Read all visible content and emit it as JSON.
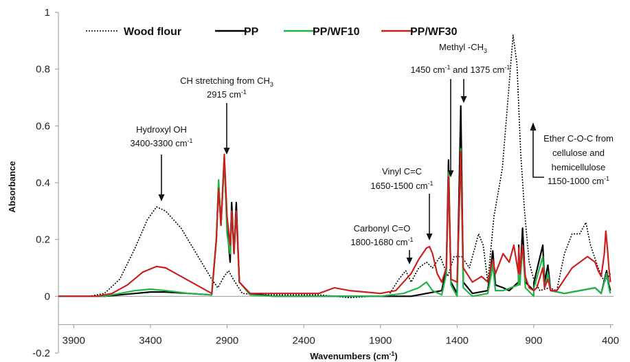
{
  "chart_data": {
    "type": "line",
    "xlabel": "Wavenumbers (cm",
    "xlabel_sup": "-1",
    "xlabel_end": ")",
    "ylabel": "Absorbance",
    "xlim": [
      4000,
      380
    ],
    "ylim": [
      -0.2,
      1
    ],
    "x_ticks": [
      3900,
      3400,
      2900,
      2400,
      1900,
      1400,
      900,
      400
    ],
    "y_ticks": [
      -0.2,
      0,
      0.2,
      0.4,
      0.6,
      0.8,
      1
    ],
    "y_tick_labels": [
      "-0.2",
      "0",
      "0.2",
      "0.4",
      "0.6",
      "0.8",
      "1"
    ],
    "grid": false,
    "legend_position": "top",
    "series": [
      {
        "name": "Wood flour",
        "color": "#000000",
        "dash": "dotted",
        "points": [
          [
            4000,
            0
          ],
          [
            3800,
            0
          ],
          [
            3700,
            0.01
          ],
          [
            3600,
            0.06
          ],
          [
            3500,
            0.17
          ],
          [
            3420,
            0.27
          ],
          [
            3360,
            0.315
          ],
          [
            3300,
            0.3
          ],
          [
            3200,
            0.24
          ],
          [
            3100,
            0.15
          ],
          [
            3000,
            0.06
          ],
          [
            2960,
            0.03
          ],
          [
            2920,
            0.07
          ],
          [
            2890,
            0.09
          ],
          [
            2860,
            0.06
          ],
          [
            2800,
            0.01
          ],
          [
            2700,
            0.005
          ],
          [
            2500,
            0.005
          ],
          [
            2300,
            0.005
          ],
          [
            2100,
            -0.005
          ],
          [
            1950,
            0
          ],
          [
            1850,
            0
          ],
          [
            1780,
            0.06
          ],
          [
            1735,
            0.09
          ],
          [
            1700,
            0.05
          ],
          [
            1650,
            0.1
          ],
          [
            1600,
            0.12
          ],
          [
            1560,
            0.1
          ],
          [
            1510,
            0.14
          ],
          [
            1460,
            0.07
          ],
          [
            1420,
            0.14
          ],
          [
            1370,
            0.14
          ],
          [
            1320,
            0.1
          ],
          [
            1260,
            0.22
          ],
          [
            1230,
            0.18
          ],
          [
            1200,
            0.05
          ],
          [
            1160,
            0.28
          ],
          [
            1105,
            0.45
          ],
          [
            1060,
            0.75
          ],
          [
            1035,
            0.92
          ],
          [
            1010,
            0.82
          ],
          [
            985,
            0.5
          ],
          [
            960,
            0.3
          ],
          [
            930,
            0.12
          ],
          [
            900,
            0.06
          ],
          [
            860,
            0.02
          ],
          [
            800,
            0.03
          ],
          [
            750,
            0.02
          ],
          [
            700,
            0.15
          ],
          [
            650,
            0.22
          ],
          [
            600,
            0.22
          ],
          [
            560,
            0.26
          ],
          [
            530,
            0.18
          ],
          [
            480,
            0.1
          ],
          [
            440,
            0.05
          ],
          [
            400,
            0.08
          ]
        ]
      },
      {
        "name": "PP",
        "color": "#000000",
        "dash": "solid",
        "points": [
          [
            4000,
            0
          ],
          [
            3700,
            0
          ],
          [
            3500,
            0.01
          ],
          [
            3400,
            0.015
          ],
          [
            3300,
            0.015
          ],
          [
            3150,
            0.01
          ],
          [
            3000,
            0.005
          ],
          [
            2970,
            0.2
          ],
          [
            2955,
            0.4
          ],
          [
            2940,
            0.25
          ],
          [
            2918,
            0.48
          ],
          [
            2900,
            0.25
          ],
          [
            2880,
            0.12
          ],
          [
            2870,
            0.33
          ],
          [
            2855,
            0.15
          ],
          [
            2840,
            0.33
          ],
          [
            2820,
            0.05
          ],
          [
            2750,
            0.01
          ],
          [
            2600,
            0
          ],
          [
            2200,
            0
          ],
          [
            1800,
            0
          ],
          [
            1700,
            0
          ],
          [
            1500,
            0.02
          ],
          [
            1470,
            0.1
          ],
          [
            1456,
            0.48
          ],
          [
            1440,
            0.05
          ],
          [
            1400,
            0.01
          ],
          [
            1376,
            0.67
          ],
          [
            1360,
            0.05
          ],
          [
            1300,
            0.01
          ],
          [
            1200,
            0.02
          ],
          [
            1167,
            0.16
          ],
          [
            1150,
            0.04
          ],
          [
            1100,
            0.03
          ],
          [
            1060,
            0.02
          ],
          [
            1000,
            0.05
          ],
          [
            998,
            0.18
          ],
          [
            990,
            0.05
          ],
          [
            973,
            0.24
          ],
          [
            955,
            0.05
          ],
          [
            900,
            0.02
          ],
          [
            899,
            0.05
          ],
          [
            841,
            0.18
          ],
          [
            830,
            0.05
          ],
          [
            808,
            0.11
          ],
          [
            790,
            0.02
          ],
          [
            700,
            0.01
          ],
          [
            600,
            0.02
          ],
          [
            500,
            0.03
          ],
          [
            460,
            0.01
          ],
          [
            425,
            0.09
          ],
          [
            410,
            0.04
          ],
          [
            400,
            0.02
          ]
        ]
      },
      {
        "name": "PP/WF10",
        "color": "#22b34a",
        "dash": "solid",
        "points": [
          [
            4000,
            0
          ],
          [
            3700,
            0
          ],
          [
            3500,
            0.02
          ],
          [
            3400,
            0.025
          ],
          [
            3300,
            0.02
          ],
          [
            3150,
            0.01
          ],
          [
            3000,
            0.005
          ],
          [
            2970,
            0.2
          ],
          [
            2955,
            0.41
          ],
          [
            2940,
            0.25
          ],
          [
            2918,
            0.49
          ],
          [
            2900,
            0.22
          ],
          [
            2880,
            0.15
          ],
          [
            2870,
            0.3
          ],
          [
            2855,
            0.15
          ],
          [
            2840,
            0.3
          ],
          [
            2820,
            0.05
          ],
          [
            2750,
            0.005
          ],
          [
            2600,
            0
          ],
          [
            1900,
            0
          ],
          [
            1750,
            0.01
          ],
          [
            1650,
            0.03
          ],
          [
            1600,
            0.05
          ],
          [
            1560,
            0.02
          ],
          [
            1500,
            0.005
          ],
          [
            1470,
            0.08
          ],
          [
            1456,
            0.44
          ],
          [
            1440,
            0.04
          ],
          [
            1400,
            0
          ],
          [
            1376,
            0.52
          ],
          [
            1360,
            0.03
          ],
          [
            1300,
            0
          ],
          [
            1200,
            0.01
          ],
          [
            1167,
            0.11
          ],
          [
            1150,
            0.02
          ],
          [
            1100,
            0.02
          ],
          [
            1050,
            0.03
          ],
          [
            1000,
            0.04
          ],
          [
            998,
            0.16
          ],
          [
            990,
            0.04
          ],
          [
            973,
            0.18
          ],
          [
            955,
            0.03
          ],
          [
            900,
            0
          ],
          [
            899,
            0.03
          ],
          [
            841,
            0.14
          ],
          [
            830,
            0.03
          ],
          [
            808,
            0.08
          ],
          [
            790,
            0.02
          ],
          [
            700,
            0.01
          ],
          [
            600,
            0.02
          ],
          [
            500,
            0.03
          ],
          [
            460,
            0.01
          ],
          [
            425,
            0.08
          ],
          [
            410,
            0.03
          ],
          [
            400,
            0.01
          ]
        ]
      },
      {
        "name": "PP/WF30",
        "color": "#cc1f1f",
        "dash": "solid",
        "points": [
          [
            4000,
            0
          ],
          [
            3750,
            0
          ],
          [
            3650,
            0.01
          ],
          [
            3550,
            0.04
          ],
          [
            3450,
            0.085
          ],
          [
            3360,
            0.105
          ],
          [
            3300,
            0.1
          ],
          [
            3200,
            0.07
          ],
          [
            3100,
            0.04
          ],
          [
            3000,
            0.01
          ],
          [
            2970,
            0.2
          ],
          [
            2955,
            0.38
          ],
          [
            2940,
            0.25
          ],
          [
            2918,
            0.5
          ],
          [
            2900,
            0.28
          ],
          [
            2880,
            0.18
          ],
          [
            2870,
            0.3
          ],
          [
            2855,
            0.15
          ],
          [
            2840,
            0.3
          ],
          [
            2820,
            0.05
          ],
          [
            2750,
            0.01
          ],
          [
            2500,
            0.01
          ],
          [
            2300,
            0.01
          ],
          [
            2200,
            0.03
          ],
          [
            2100,
            0.02
          ],
          [
            2000,
            0.015
          ],
          [
            1900,
            0.01
          ],
          [
            1800,
            0.02
          ],
          [
            1750,
            0.05
          ],
          [
            1700,
            0.08
          ],
          [
            1650,
            0.13
          ],
          [
            1600,
            0.17
          ],
          [
            1580,
            0.175
          ],
          [
            1560,
            0.15
          ],
          [
            1530,
            0.08
          ],
          [
            1500,
            0.05
          ],
          [
            1470,
            0.1
          ],
          [
            1456,
            0.42
          ],
          [
            1440,
            0.06
          ],
          [
            1400,
            0.05
          ],
          [
            1376,
            0.51
          ],
          [
            1360,
            0.1
          ],
          [
            1300,
            0.05
          ],
          [
            1240,
            0.07
          ],
          [
            1200,
            0.05
          ],
          [
            1167,
            0.13
          ],
          [
            1150,
            0.08
          ],
          [
            1100,
            0.15
          ],
          [
            1060,
            0.12
          ],
          [
            1030,
            0.18
          ],
          [
            1000,
            0.08
          ],
          [
            998,
            0.17
          ],
          [
            990,
            0.08
          ],
          [
            973,
            0.18
          ],
          [
            955,
            0.07
          ],
          [
            930,
            0.03
          ],
          [
            900,
            0.02
          ],
          [
            880,
            0.03
          ],
          [
            841,
            0.1
          ],
          [
            830,
            0.03
          ],
          [
            808,
            0.06
          ],
          [
            790,
            0.02
          ],
          [
            750,
            0.02
          ],
          [
            700,
            0.06
          ],
          [
            650,
            0.1
          ],
          [
            600,
            0.12
          ],
          [
            550,
            0.14
          ],
          [
            500,
            0.12
          ],
          [
            480,
            0.09
          ],
          [
            460,
            0.07
          ],
          [
            440,
            0.15
          ],
          [
            430,
            0.23
          ],
          [
            420,
            0.17
          ],
          [
            410,
            0.1
          ],
          [
            400,
            0.05
          ]
        ]
      }
    ],
    "annotations": [
      {
        "id": "hydroxyl",
        "lines": [
          "Hydroxyl OH",
          "3400-3300 cm"
        ],
        "sup": "-1"
      },
      {
        "id": "ch-stretch",
        "lines": [
          "CH stretching from CH",
          "2915 cm"
        ],
        "sub": "3",
        "sup": "-1"
      },
      {
        "id": "carbonyl",
        "lines": [
          "Carbonyl C=O",
          "1800-1680 cm"
        ],
        "sup": "-1"
      },
      {
        "id": "vinyl",
        "lines": [
          "Vinyl C=C",
          "1650-1500 cm"
        ],
        "sup": "-1"
      },
      {
        "id": "methyl",
        "lines": [
          "Methyl -CH",
          "1450 cm",
          " and 1375 cm"
        ],
        "sub": "3",
        "sup": "-1"
      },
      {
        "id": "ether",
        "lines": [
          "Ether C-O-C from",
          "cellulose and",
          "hemicellulose",
          "1150-1000 cm"
        ],
        "sup": "-1"
      }
    ]
  }
}
